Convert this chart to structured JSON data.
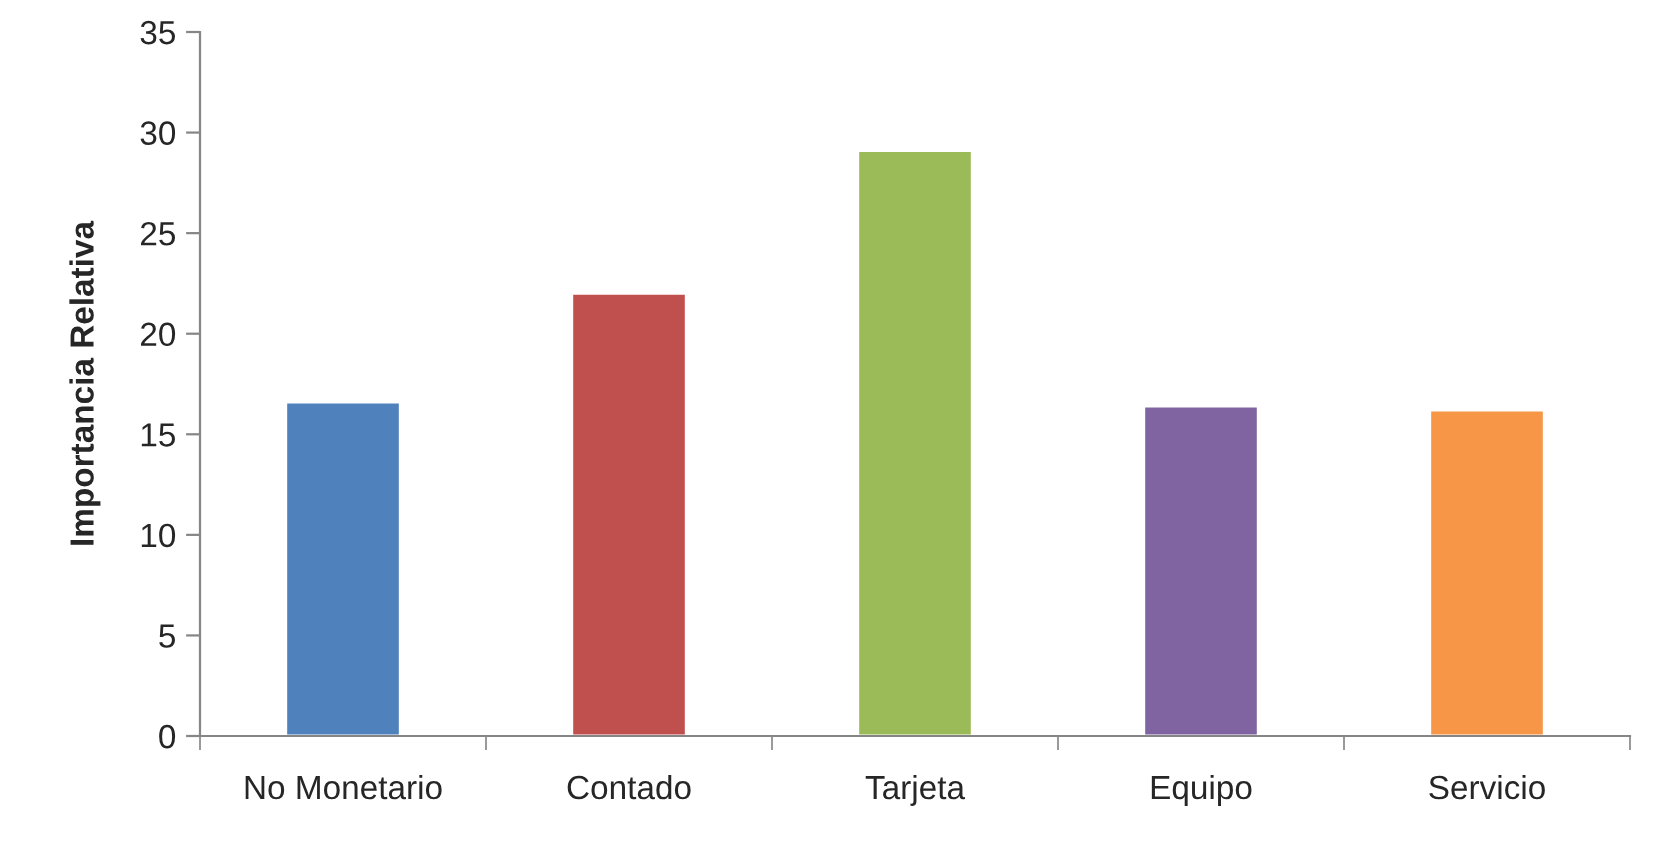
{
  "chart_data": {
    "type": "bar",
    "ylabel": "Importancia Relativa",
    "categories": [
      "No Monetario",
      "Contado",
      "Tarjeta",
      "Equipo",
      "Servicio"
    ],
    "values": [
      16.6,
      22.0,
      29.1,
      16.4,
      16.2
    ],
    "colors": [
      "#4f81bd",
      "#c0504d",
      "#9bbb59",
      "#8064a2",
      "#f79646"
    ],
    "ylim": [
      0,
      35
    ],
    "yticks": [
      0,
      5,
      10,
      15,
      20,
      25,
      30,
      35
    ],
    "grid": false
  }
}
